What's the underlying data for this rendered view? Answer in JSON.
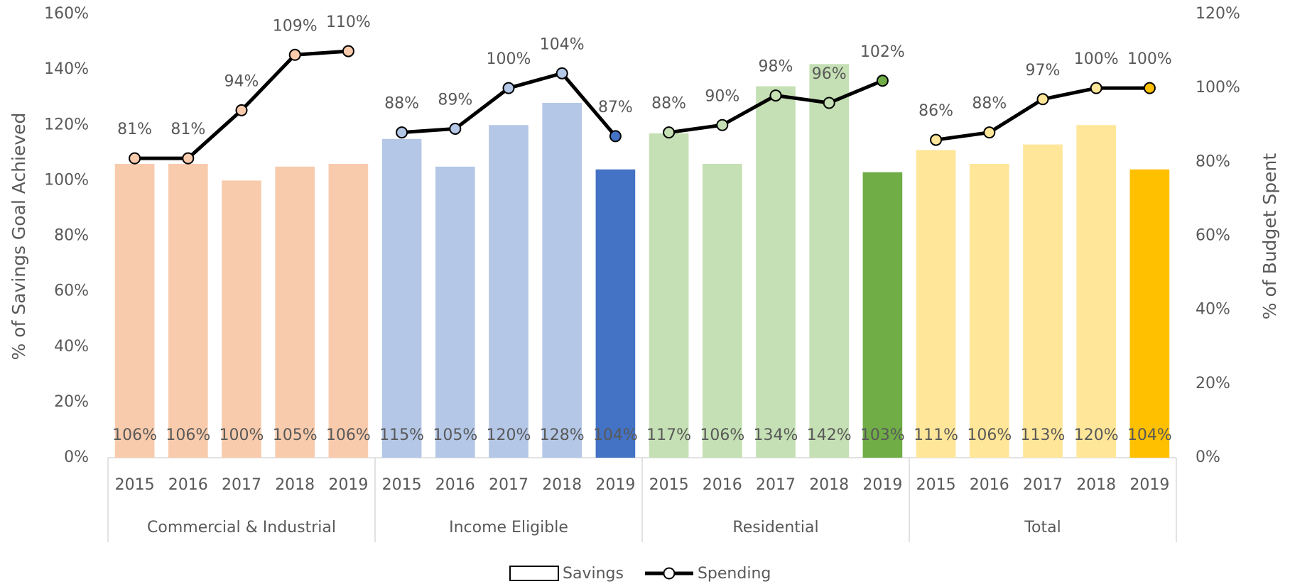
{
  "chart_data": {
    "type": "bar_line",
    "categories": [
      "2015",
      "2016",
      "2017",
      "2018",
      "2019",
      "2015",
      "2016",
      "2017",
      "2018",
      "2019",
      "2015",
      "2016",
      "2017",
      "2018",
      "2019",
      "2015",
      "2016",
      "2017",
      "2018",
      "2019"
    ],
    "groups": [
      "Commercial & Industrial",
      "Income Eligible",
      "Residential",
      "Total"
    ],
    "ylabel": "% of Savings Goal Achieved",
    "y2label": "% of Budget Spent",
    "ylim": [
      0,
      160
    ],
    "yticks": [
      {
        "value": 0,
        "label": "0%"
      },
      {
        "value": 20,
        "label": "20%"
      },
      {
        "value": 40,
        "label": "40%"
      },
      {
        "value": 60,
        "label": "60%"
      },
      {
        "value": 80,
        "label": "80%"
      },
      {
        "value": 100,
        "label": "100%"
      },
      {
        "value": 120,
        "label": "120%"
      },
      {
        "value": 140,
        "label": "140%"
      },
      {
        "value": 160,
        "label": "160%"
      }
    ],
    "y2lim": [
      0,
      120
    ],
    "y2ticks": [
      {
        "value": 0,
        "label": "0%"
      },
      {
        "value": 20,
        "label": "20%"
      },
      {
        "value": 40,
        "label": "40%"
      },
      {
        "value": 60,
        "label": "60%"
      },
      {
        "value": 80,
        "label": "80%"
      },
      {
        "value": 100,
        "label": "100%"
      },
      {
        "value": 120,
        "label": "120%"
      }
    ],
    "grid": false,
    "legend": "bottom",
    "series": [
      {
        "name": "Savings",
        "kind": "bar",
        "axis": "y",
        "color": "#ffffff",
        "values": [
          106,
          106,
          100,
          105,
          106,
          115,
          105,
          120,
          128,
          104,
          117,
          106,
          134,
          142,
          103,
          111,
          106,
          113,
          120,
          104
        ],
        "value_labels": [
          "106%",
          "106%",
          "100%",
          "105%",
          "106%",
          "115%",
          "105%",
          "120%",
          "128%",
          "104%",
          "117%",
          "106%",
          "134%",
          "142%",
          "103%",
          "111%",
          "106%",
          "113%",
          "120%",
          "104%"
        ],
        "colors": [
          "#f8cbad",
          "#f8cbad",
          "#f8cbad",
          "#f8cbad",
          "#f8cbad",
          "#b4c7e7",
          "#b4c7e7",
          "#b4c7e7",
          "#b4c7e7",
          "#4472c4",
          "#c5e0b4",
          "#c5e0b4",
          "#c5e0b4",
          "#c5e0b4",
          "#70ad47",
          "#ffe699",
          "#ffe699",
          "#ffe699",
          "#ffe699",
          "#ffc000"
        ]
      },
      {
        "name": "Spending",
        "kind": "line",
        "axis": "y2",
        "color": "#000000",
        "values": [
          81,
          81,
          94,
          109,
          110,
          88,
          89,
          100,
          104,
          87,
          88,
          90,
          98,
          96,
          102,
          86,
          88,
          97,
          100,
          100
        ],
        "value_labels": [
          "81%",
          "81%",
          "94%",
          "109%",
          "110%",
          "88%",
          "89%",
          "100%",
          "104%",
          "87%",
          "88%",
          "90%",
          "98%",
          "96%",
          "102%",
          "86%",
          "88%",
          "97%",
          "100%",
          "100%"
        ],
        "colors": [
          "#f8cbad",
          "#f8cbad",
          "#f8cbad",
          "#f8cbad",
          "#f8cbad",
          "#b4c7e7",
          "#b4c7e7",
          "#b4c7e7",
          "#b4c7e7",
          "#4472c4",
          "#c5e0b4",
          "#c5e0b4",
          "#c5e0b4",
          "#c5e0b4",
          "#70ad47",
          "#ffe699",
          "#ffe699",
          "#ffe699",
          "#ffe699",
          "#ffc000"
        ]
      }
    ]
  }
}
